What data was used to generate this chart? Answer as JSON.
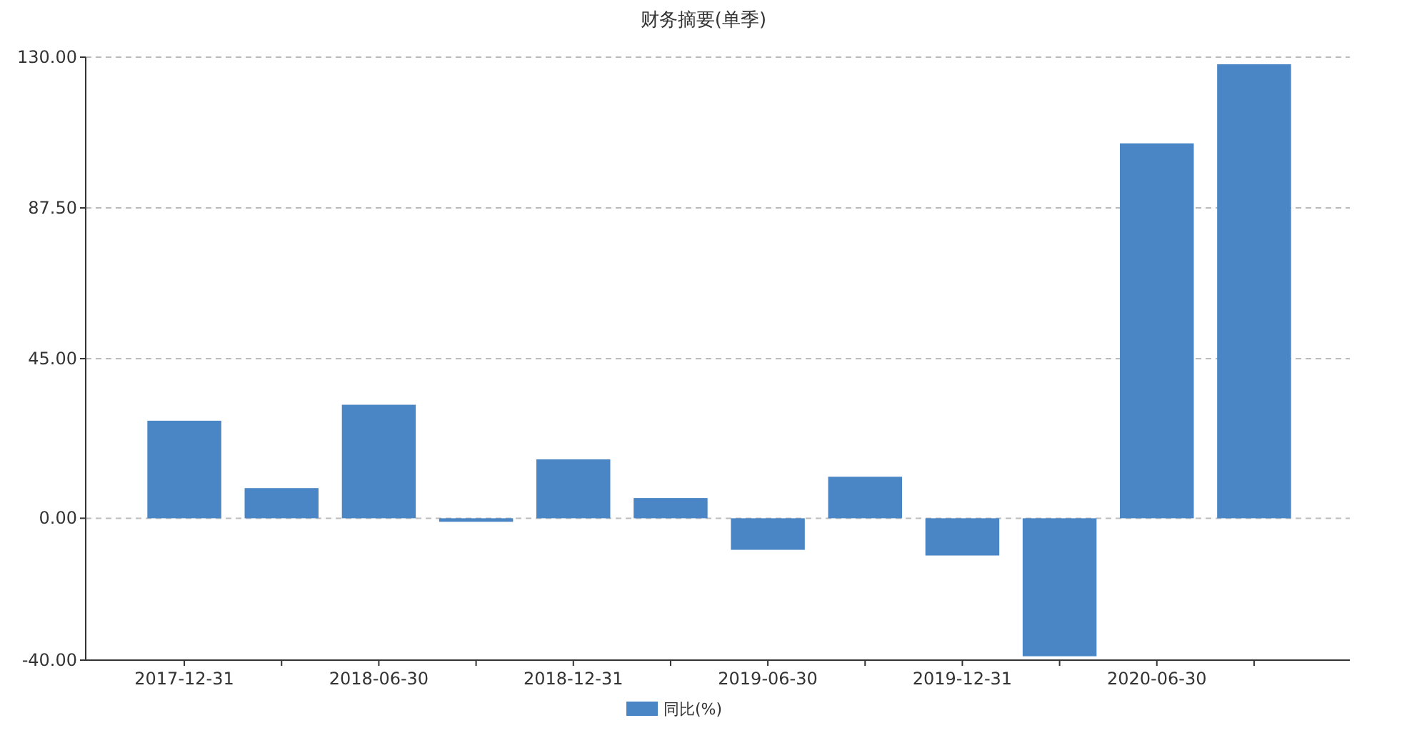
{
  "chart_data": {
    "type": "bar",
    "title": "财务摘要(单季)",
    "categories": [
      "2017-12-31",
      null,
      "2018-06-30",
      null,
      "2018-12-31",
      null,
      "2019-06-30",
      null,
      "2019-12-31",
      null,
      "2020-06-30",
      null
    ],
    "series": [
      {
        "name": "同比(%)",
        "color": "#4a86c5",
        "values": [
          27.5,
          8.5,
          32,
          -1,
          16.6,
          5.7,
          -8.9,
          11.7,
          -10.5,
          -38.9,
          105.7,
          128
        ]
      }
    ],
    "ylim": [
      -40,
      130
    ],
    "yticks": [
      {
        "value": 130,
        "label": "130.00"
      },
      {
        "value": 87.5,
        "label": "87.50"
      },
      {
        "value": 45,
        "label": "45.00"
      },
      {
        "value": 0,
        "label": "0.00"
      },
      {
        "value": -40,
        "label": "-40.00"
      }
    ],
    "grid": "y",
    "legend": "bottom"
  }
}
